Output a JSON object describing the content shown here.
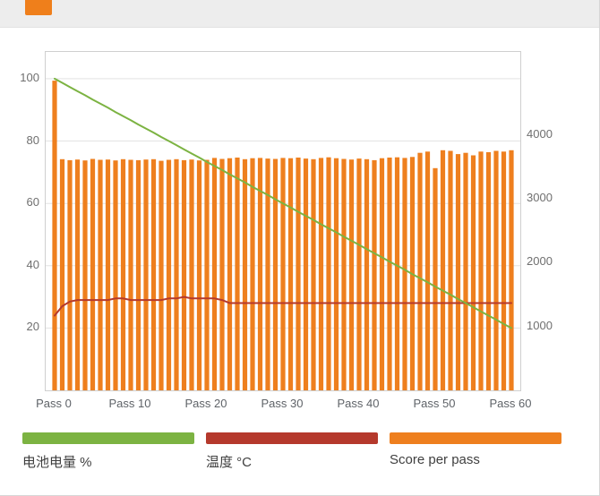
{
  "topbar": {
    "cropped_button_color": "#ef7f1b"
  },
  "chart_data": {
    "type": "bar",
    "x": [
      0,
      1,
      2,
      3,
      4,
      5,
      6,
      7,
      8,
      9,
      10,
      11,
      12,
      13,
      14,
      15,
      16,
      17,
      18,
      19,
      20,
      21,
      22,
      23,
      24,
      25,
      26,
      27,
      28,
      29,
      30,
      31,
      32,
      33,
      34,
      35,
      36,
      37,
      38,
      39,
      40,
      41,
      42,
      43,
      44,
      45,
      46,
      47,
      48,
      49,
      50,
      51,
      52,
      53,
      54,
      55,
      56,
      57,
      58,
      59,
      60
    ],
    "x_tick_labels": [
      "Pass 0",
      "Pass 10",
      "Pass 20",
      "Pass 30",
      "Pass 40",
      "Pass 50",
      "Pass 60"
    ],
    "left_axis": {
      "ticks": [
        20,
        40,
        60,
        80,
        100
      ],
      "range": [
        0,
        108.6
      ]
    },
    "right_axis": {
      "ticks": [
        1000,
        2000,
        3000,
        4000
      ],
      "range": [
        0,
        5300
      ]
    },
    "grid": "horizontal",
    "series": [
      {
        "name": "电池电量 %",
        "type": "line",
        "axis": "left",
        "color": "#7cb342",
        "values": [
          100,
          98.7,
          97.3,
          96,
          94.7,
          93.3,
          92,
          90.7,
          89.3,
          88,
          86.7,
          85.3,
          84,
          82.7,
          81.3,
          80,
          78.7,
          77.3,
          76,
          74.7,
          73.3,
          72,
          70.7,
          69.3,
          68,
          66.7,
          65.3,
          64,
          62.7,
          61.3,
          60,
          58.7,
          57.3,
          56,
          54.7,
          53.3,
          52,
          50.7,
          49.3,
          48,
          46.7,
          45.3,
          44,
          42.7,
          41.3,
          40,
          38.7,
          37.3,
          36,
          34.7,
          33.3,
          32,
          30.7,
          29.3,
          28,
          26.7,
          25.3,
          24,
          22.7,
          21.3,
          20
        ]
      },
      {
        "name": "温度 °C",
        "type": "line",
        "axis": "left",
        "color": "#b5392c",
        "values": [
          24,
          27,
          28.5,
          29,
          29,
          29,
          29,
          29,
          29.5,
          29.5,
          29,
          29,
          29,
          29,
          29,
          29.5,
          29.5,
          30,
          29.5,
          29.5,
          29.5,
          29.5,
          29,
          28,
          28,
          28,
          28,
          28,
          28,
          28,
          28,
          28,
          28,
          28,
          28,
          28,
          28,
          28,
          28,
          28,
          28,
          28,
          28,
          28,
          28,
          28,
          28,
          28,
          28,
          28,
          28,
          28,
          28,
          28,
          28,
          28,
          28,
          28,
          28,
          28,
          28
        ]
      },
      {
        "name": "Score per pass",
        "type": "bar",
        "axis": "right",
        "color": "#ee7f1e",
        "values": [
          4850,
          3620,
          3605,
          3615,
          3600,
          3625,
          3610,
          3615,
          3600,
          3620,
          3610,
          3605,
          3615,
          3620,
          3595,
          3610,
          3620,
          3605,
          3615,
          3600,
          3610,
          3640,
          3625,
          3635,
          3645,
          3620,
          3635,
          3640,
          3630,
          3625,
          3640,
          3635,
          3645,
          3630,
          3620,
          3640,
          3650,
          3635,
          3625,
          3615,
          3630,
          3620,
          3605,
          3635,
          3645,
          3650,
          3640,
          3655,
          3720,
          3740,
          3480,
          3760,
          3750,
          3700,
          3720,
          3680,
          3740,
          3730,
          3750,
          3740,
          3760
        ]
      }
    ]
  },
  "legend": {
    "items": [
      {
        "label": "电池电量 %",
        "color": "#7cb342"
      },
      {
        "label": "温度 °C",
        "color": "#b5392c"
      },
      {
        "label": "Score per pass",
        "color": "#ee7f1e"
      }
    ]
  }
}
